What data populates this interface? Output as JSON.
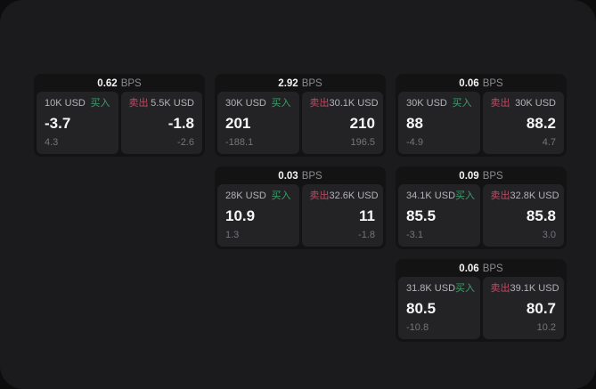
{
  "colors": {
    "buy_green": "#3f9e6b",
    "sell_red": "#bf4a64",
    "panel_bg": "#1b1b1d",
    "card_bg": "#131314",
    "cell_bg": "#232326"
  },
  "cards": [
    {
      "bps_value": "0.62",
      "bps_unit": "BPS",
      "buy": {
        "size": "10K USD",
        "side_label": "买入",
        "price": "-3.7",
        "delta": "4.3"
      },
      "sell": {
        "side_label": "卖出",
        "size": "5.5K USD",
        "price": "-1.8",
        "delta": "-2.6"
      }
    },
    {
      "bps_value": "2.92",
      "bps_unit": "BPS",
      "buy": {
        "size": "30K USD",
        "side_label": "买入",
        "price": "201",
        "delta": "-188.1"
      },
      "sell": {
        "side_label": "卖出",
        "size": "30.1K USD",
        "price": "210",
        "delta": "196.5"
      }
    },
    {
      "bps_value": "0.06",
      "bps_unit": "BPS",
      "buy": {
        "size": "30K USD",
        "side_label": "买入",
        "price": "88",
        "delta": "-4.9"
      },
      "sell": {
        "side_label": "卖出",
        "size": "30K USD",
        "price": "88.2",
        "delta": "4.7"
      }
    },
    {
      "bps_value": "0.03",
      "bps_unit": "BPS",
      "buy": {
        "size": "28K USD",
        "side_label": "买入",
        "price": "10.9",
        "delta": "1.3"
      },
      "sell": {
        "side_label": "卖出",
        "size": "32.6K USD",
        "price": "11",
        "delta": "-1.8"
      }
    },
    {
      "bps_value": "0.09",
      "bps_unit": "BPS",
      "buy": {
        "size": "34.1K USD",
        "side_label": "买入",
        "price": "85.5",
        "delta": "-3.1"
      },
      "sell": {
        "side_label": "卖出",
        "size": "32.8K USD",
        "price": "85.8",
        "delta": "3.0"
      }
    },
    {
      "bps_value": "0.06",
      "bps_unit": "BPS",
      "buy": {
        "size": "31.8K USD",
        "side_label": "买入",
        "price": "80.5",
        "delta": "-10.8"
      },
      "sell": {
        "side_label": "卖出",
        "size": "39.1K USD",
        "price": "80.7",
        "delta": "10.2"
      }
    }
  ]
}
